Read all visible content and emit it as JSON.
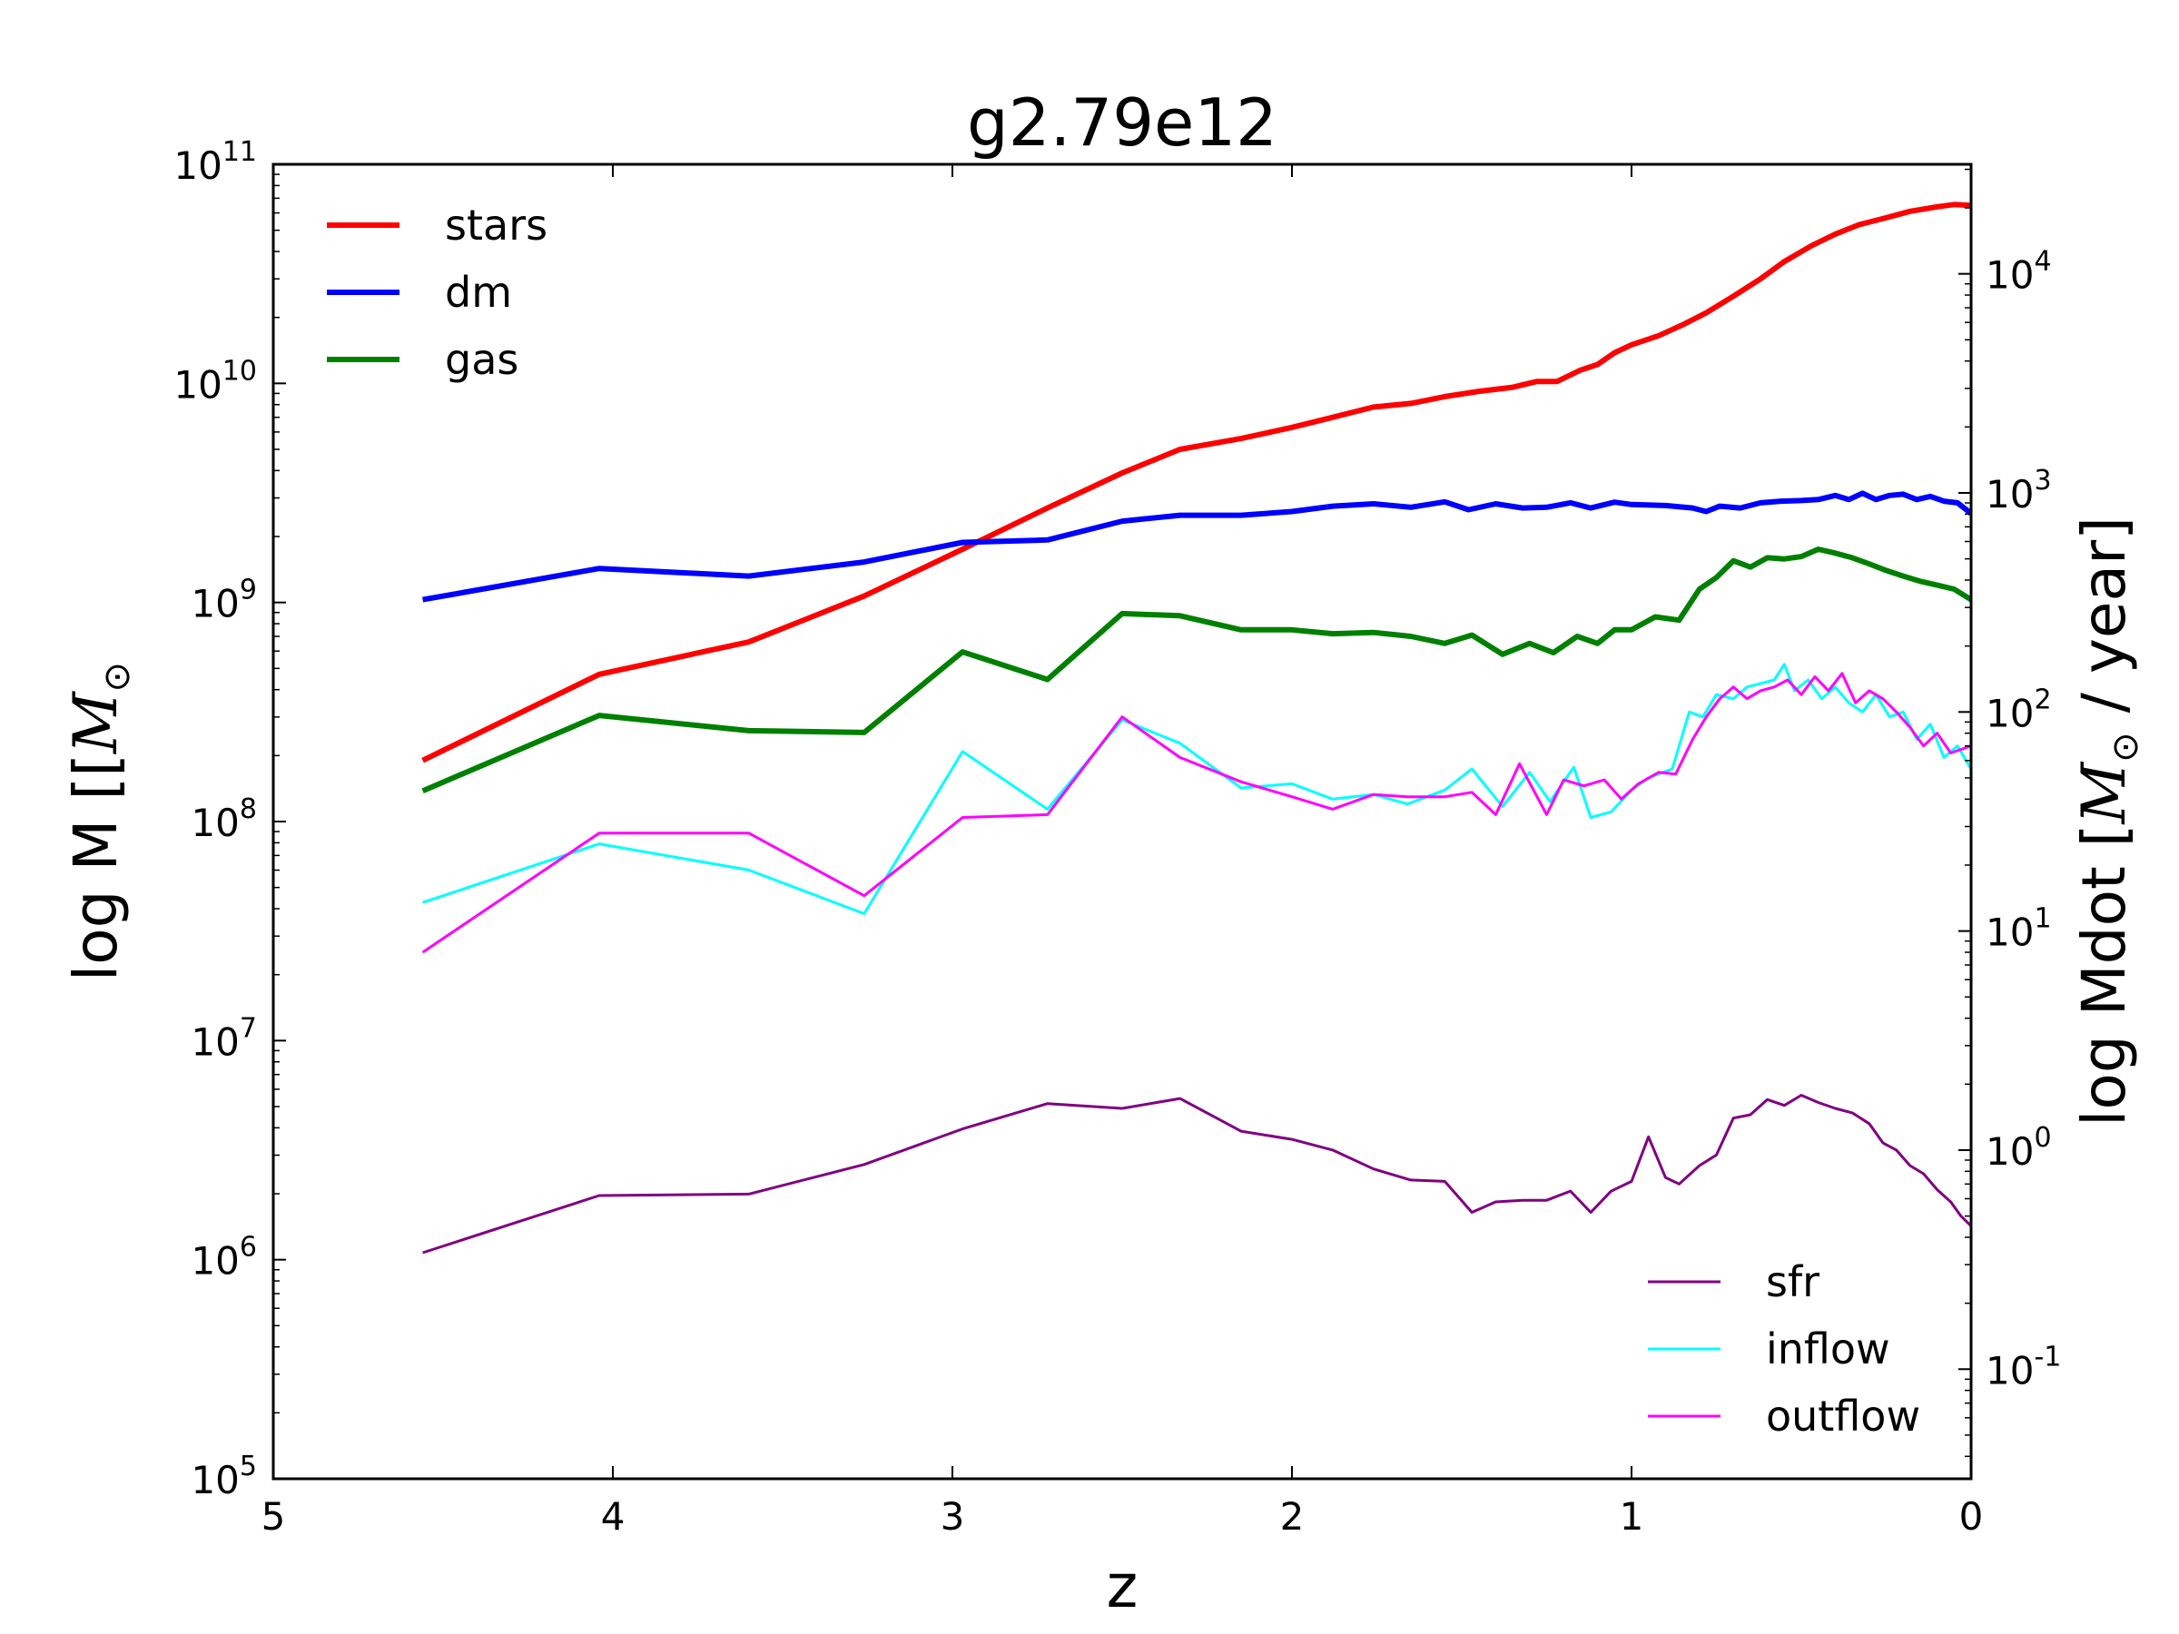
{
  "chart_data": {
    "type": "line",
    "title": "g2.79e12",
    "xlabel": "z",
    "ylabel_left": "log M [[",
    "ylabel_left_math": "M",
    "ylabel_left_sub": "⊙",
    "ylabel_right": "log Mdot [",
    "ylabel_right_math": "M",
    "ylabel_right_sub": "⊙",
    "ylabel_right_tail": " / year]",
    "xlim": [
      5,
      0
    ],
    "ylim_left": [
      100000,
      100000000000
    ],
    "ylim_right": [
      0.0316,
      31623
    ],
    "yscale": "log",
    "x_ticks": [
      "5",
      "4",
      "3",
      "2",
      "1",
      "0"
    ],
    "y_left_ticks": [
      {
        "base": "10",
        "exp": "5"
      },
      {
        "base": "10",
        "exp": "6"
      },
      {
        "base": "10",
        "exp": "7"
      },
      {
        "base": "10",
        "exp": "8"
      },
      {
        "base": "10",
        "exp": "9"
      },
      {
        "base": "10",
        "exp": "10"
      },
      {
        "base": "10",
        "exp": "11"
      }
    ],
    "y_right_ticks": [
      {
        "base": "10",
        "exp": "-1"
      },
      {
        "base": "10",
        "exp": "0"
      },
      {
        "base": "10",
        "exp": "1"
      },
      {
        "base": "10",
        "exp": "2"
      },
      {
        "base": "10",
        "exp": "3"
      },
      {
        "base": "10",
        "exp": "4"
      }
    ],
    "legend_left_placement": "upper-left",
    "legend_right_placement": "lower-right",
    "series_left": [
      {
        "name": "stars",
        "color": "#ff0000",
        "points": [
          [
            4.56,
            190000000.0
          ],
          [
            4.04,
            470000000.0
          ],
          [
            3.6,
            660000000.0
          ],
          [
            3.26,
            1070000000.0
          ],
          [
            2.97,
            1750000000.0
          ],
          [
            2.72,
            2700000000.0
          ],
          [
            2.5,
            3900000000.0
          ],
          [
            2.33,
            5000000000.0
          ],
          [
            2.15,
            5600000000.0
          ],
          [
            2.0,
            6300000000.0
          ],
          [
            1.88,
            7000000000.0
          ],
          [
            1.76,
            7800000000.0
          ],
          [
            1.65,
            8100000000.0
          ],
          [
            1.55,
            8700000000.0
          ],
          [
            1.45,
            9200000000.0
          ],
          [
            1.35,
            9600000000.0
          ],
          [
            1.28,
            10200000000.0
          ],
          [
            1.22,
            10200000000.0
          ],
          [
            1.15,
            11500000000.0
          ],
          [
            1.1,
            12200000000.0
          ],
          [
            1.05,
            13800000000.0
          ],
          [
            1.0,
            15000000000.0
          ],
          [
            0.92,
            16500000000.0
          ],
          [
            0.85,
            18500000000.0
          ],
          [
            0.78,
            21000000000.0
          ],
          [
            0.7,
            25000000000.0
          ],
          [
            0.62,
            30000000000.0
          ],
          [
            0.55,
            36000000000.0
          ],
          [
            0.47,
            42500000000.0
          ],
          [
            0.4,
            48000000000.0
          ],
          [
            0.33,
            53000000000.0
          ],
          [
            0.25,
            57000000000.0
          ],
          [
            0.18,
            61000000000.0
          ],
          [
            0.1,
            64000000000.0
          ],
          [
            0.05,
            65500000000.0
          ],
          [
            0.0,
            65000000000.0
          ]
        ]
      },
      {
        "name": "dm",
        "color": "#0000ff",
        "points": [
          [
            4.56,
            1030000000.0
          ],
          [
            4.04,
            1430000000.0
          ],
          [
            3.6,
            1320000000.0
          ],
          [
            3.26,
            1530000000.0
          ],
          [
            2.97,
            1880000000.0
          ],
          [
            2.72,
            1930000000.0
          ],
          [
            2.5,
            2350000000.0
          ],
          [
            2.33,
            2500000000.0
          ],
          [
            2.15,
            2500000000.0
          ],
          [
            2.0,
            2600000000.0
          ],
          [
            1.88,
            2750000000.0
          ],
          [
            1.76,
            2820000000.0
          ],
          [
            1.65,
            2720000000.0
          ],
          [
            1.55,
            2880000000.0
          ],
          [
            1.48,
            2650000000.0
          ],
          [
            1.4,
            2820000000.0
          ],
          [
            1.32,
            2700000000.0
          ],
          [
            1.25,
            2720000000.0
          ],
          [
            1.18,
            2850000000.0
          ],
          [
            1.12,
            2700000000.0
          ],
          [
            1.05,
            2870000000.0
          ],
          [
            1.0,
            2800000000.0
          ],
          [
            0.9,
            2770000000.0
          ],
          [
            0.82,
            2700000000.0
          ],
          [
            0.78,
            2600000000.0
          ],
          [
            0.74,
            2750000000.0
          ],
          [
            0.68,
            2700000000.0
          ],
          [
            0.62,
            2850000000.0
          ],
          [
            0.56,
            2900000000.0
          ],
          [
            0.5,
            2920000000.0
          ],
          [
            0.45,
            2950000000.0
          ],
          [
            0.4,
            3080000000.0
          ],
          [
            0.36,
            2950000000.0
          ],
          [
            0.32,
            3150000000.0
          ],
          [
            0.28,
            2950000000.0
          ],
          [
            0.24,
            3080000000.0
          ],
          [
            0.2,
            3120000000.0
          ],
          [
            0.16,
            2950000000.0
          ],
          [
            0.12,
            3050000000.0
          ],
          [
            0.08,
            2900000000.0
          ],
          [
            0.04,
            2850000000.0
          ],
          [
            0.0,
            2550000000.0
          ]
        ]
      },
      {
        "name": "gas",
        "color": "#008000",
        "points": [
          [
            4.56,
            138000000.0
          ],
          [
            4.04,
            305000000.0
          ],
          [
            3.6,
            260000000.0
          ],
          [
            3.26,
            255000000.0
          ],
          [
            2.97,
            595000000.0
          ],
          [
            2.72,
            445000000.0
          ],
          [
            2.5,
            890000000.0
          ],
          [
            2.33,
            870000000.0
          ],
          [
            2.15,
            750000000.0
          ],
          [
            2.0,
            750000000.0
          ],
          [
            1.88,
            720000000.0
          ],
          [
            1.76,
            730000000.0
          ],
          [
            1.65,
            700000000.0
          ],
          [
            1.55,
            650000000.0
          ],
          [
            1.47,
            710000000.0
          ],
          [
            1.38,
            580000000.0
          ],
          [
            1.3,
            650000000.0
          ],
          [
            1.23,
            590000000.0
          ],
          [
            1.16,
            700000000.0
          ],
          [
            1.1,
            650000000.0
          ],
          [
            1.05,
            750000000.0
          ],
          [
            1.0,
            750000000.0
          ],
          [
            0.93,
            860000000.0
          ],
          [
            0.86,
            830000000.0
          ],
          [
            0.8,
            1150000000.0
          ],
          [
            0.75,
            1300000000.0
          ],
          [
            0.7,
            1550000000.0
          ],
          [
            0.65,
            1450000000.0
          ],
          [
            0.6,
            1600000000.0
          ],
          [
            0.55,
            1580000000.0
          ],
          [
            0.5,
            1620000000.0
          ],
          [
            0.45,
            1750000000.0
          ],
          [
            0.4,
            1680000000.0
          ],
          [
            0.35,
            1600000000.0
          ],
          [
            0.3,
            1500000000.0
          ],
          [
            0.25,
            1400000000.0
          ],
          [
            0.2,
            1320000000.0
          ],
          [
            0.15,
            1250000000.0
          ],
          [
            0.1,
            1200000000.0
          ],
          [
            0.05,
            1150000000.0
          ],
          [
            0.0,
            1030000000.0
          ]
        ]
      }
    ],
    "series_right": [
      {
        "name": "sfr",
        "color": "#800080",
        "points": [
          [
            4.56,
            0.34
          ],
          [
            4.04,
            0.62
          ],
          [
            3.6,
            0.63
          ],
          [
            3.26,
            0.86
          ],
          [
            2.97,
            1.25
          ],
          [
            2.72,
            1.63
          ],
          [
            2.5,
            1.55
          ],
          [
            2.33,
            1.72
          ],
          [
            2.15,
            1.22
          ],
          [
            2.0,
            1.12
          ],
          [
            1.88,
            1.0
          ],
          [
            1.76,
            0.82
          ],
          [
            1.65,
            0.73
          ],
          [
            1.55,
            0.72
          ],
          [
            1.47,
            0.52
          ],
          [
            1.4,
            0.58
          ],
          [
            1.32,
            0.59
          ],
          [
            1.25,
            0.59
          ],
          [
            1.18,
            0.65
          ],
          [
            1.12,
            0.52
          ],
          [
            1.06,
            0.65
          ],
          [
            1.0,
            0.72
          ],
          [
            0.95,
            1.15
          ],
          [
            0.9,
            0.75
          ],
          [
            0.86,
            0.7
          ],
          [
            0.8,
            0.85
          ],
          [
            0.75,
            0.95
          ],
          [
            0.7,
            1.4
          ],
          [
            0.65,
            1.45
          ],
          [
            0.6,
            1.7
          ],
          [
            0.55,
            1.6
          ],
          [
            0.5,
            1.78
          ],
          [
            0.45,
            1.65
          ],
          [
            0.4,
            1.55
          ],
          [
            0.35,
            1.48
          ],
          [
            0.3,
            1.32
          ],
          [
            0.26,
            1.08
          ],
          [
            0.22,
            1.0
          ],
          [
            0.18,
            0.85
          ],
          [
            0.14,
            0.78
          ],
          [
            0.1,
            0.66
          ],
          [
            0.06,
            0.58
          ],
          [
            0.03,
            0.5
          ],
          [
            0.0,
            0.45
          ]
        ]
      },
      {
        "name": "inflow",
        "color": "#00ffff",
        "points": [
          [
            4.56,
            13.5
          ],
          [
            4.04,
            25
          ],
          [
            3.6,
            19
          ],
          [
            3.26,
            12
          ],
          [
            2.97,
            66
          ],
          [
            2.72,
            36
          ],
          [
            2.5,
            92
          ],
          [
            2.33,
            72
          ],
          [
            2.15,
            45
          ],
          [
            2.0,
            47
          ],
          [
            1.88,
            40
          ],
          [
            1.76,
            42
          ],
          [
            1.66,
            38
          ],
          [
            1.55,
            44
          ],
          [
            1.47,
            55
          ],
          [
            1.38,
            37
          ],
          [
            1.3,
            53
          ],
          [
            1.24,
            39
          ],
          [
            1.17,
            56
          ],
          [
            1.12,
            33
          ],
          [
            1.06,
            35
          ],
          [
            1.0,
            44
          ],
          [
            0.95,
            50
          ],
          [
            0.88,
            55
          ],
          [
            0.83,
            100
          ],
          [
            0.79,
            95
          ],
          [
            0.75,
            120
          ],
          [
            0.7,
            115
          ],
          [
            0.66,
            130
          ],
          [
            0.62,
            135
          ],
          [
            0.58,
            140
          ],
          [
            0.55,
            165
          ],
          [
            0.52,
            125
          ],
          [
            0.48,
            140
          ],
          [
            0.44,
            115
          ],
          [
            0.4,
            130
          ],
          [
            0.36,
            110
          ],
          [
            0.32,
            100
          ],
          [
            0.28,
            120
          ],
          [
            0.24,
            95
          ],
          [
            0.2,
            100
          ],
          [
            0.16,
            75
          ],
          [
            0.12,
            88
          ],
          [
            0.08,
            62
          ],
          [
            0.04,
            70
          ],
          [
            0.0,
            55
          ]
        ]
      },
      {
        "name": "outflow",
        "color": "#ff00ff",
        "points": [
          [
            4.56,
            8
          ],
          [
            4.04,
            28
          ],
          [
            3.6,
            28
          ],
          [
            3.26,
            14.5
          ],
          [
            2.97,
            33
          ],
          [
            2.72,
            34
          ],
          [
            2.5,
            95
          ],
          [
            2.33,
            62
          ],
          [
            2.15,
            48
          ],
          [
            2.0,
            41
          ],
          [
            1.88,
            36
          ],
          [
            1.76,
            42
          ],
          [
            1.66,
            41
          ],
          [
            1.55,
            41
          ],
          [
            1.47,
            43
          ],
          [
            1.4,
            34
          ],
          [
            1.33,
            58
          ],
          [
            1.25,
            34
          ],
          [
            1.2,
            49
          ],
          [
            1.14,
            46
          ],
          [
            1.08,
            49
          ],
          [
            1.03,
            40
          ],
          [
            0.98,
            47
          ],
          [
            0.92,
            53
          ],
          [
            0.87,
            52
          ],
          [
            0.82,
            75
          ],
          [
            0.78,
            95
          ],
          [
            0.74,
            115
          ],
          [
            0.7,
            130
          ],
          [
            0.66,
            115
          ],
          [
            0.62,
            125
          ],
          [
            0.58,
            130
          ],
          [
            0.54,
            140
          ],
          [
            0.5,
            120
          ],
          [
            0.46,
            145
          ],
          [
            0.42,
            125
          ],
          [
            0.38,
            150
          ],
          [
            0.34,
            110
          ],
          [
            0.3,
            125
          ],
          [
            0.26,
            115
          ],
          [
            0.22,
            100
          ],
          [
            0.18,
            85
          ],
          [
            0.14,
            70
          ],
          [
            0.1,
            80
          ],
          [
            0.06,
            65
          ],
          [
            0.0,
            70
          ]
        ]
      }
    ]
  }
}
